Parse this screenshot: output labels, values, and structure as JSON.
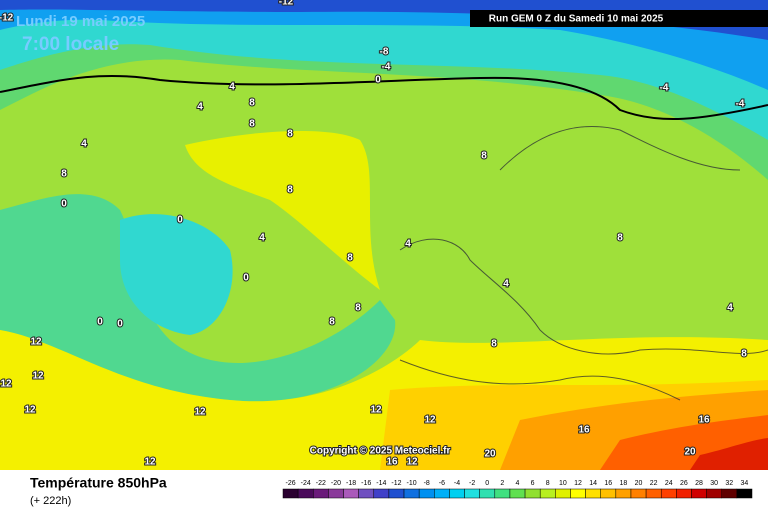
{
  "header": {
    "date": "Lundi 19 mai 2025",
    "time": "7:00 locale",
    "run": "Run GEM 0 Z du Samedi 10 mai 2025",
    "copyright": "Copyright © 2025 Meteociel.fr"
  },
  "footer": {
    "title": "Température 850hPa",
    "lead": "(+ 222h)"
  },
  "colorbar": {
    "ticks": [
      -26,
      -24,
      -22,
      -20,
      -18,
      -16,
      -14,
      -12,
      -10,
      -8,
      -6,
      -4,
      -2,
      0,
      2,
      4,
      6,
      8,
      10,
      12,
      14,
      16,
      18,
      20,
      22,
      24,
      26,
      28,
      30,
      32,
      34
    ],
    "colors": [
      "#2a0030",
      "#4a0a5a",
      "#6a1a7a",
      "#8a3a9a",
      "#aa5aba",
      "#7050c0",
      "#4040c8",
      "#2050d0",
      "#1070e0",
      "#0090f0",
      "#00b0f8",
      "#00d0f0",
      "#20e0e0",
      "#30e0b0",
      "#40e080",
      "#60e050",
      "#90e030",
      "#b8f020",
      "#e0f000",
      "#ffff00",
      "#ffe000",
      "#ffc000",
      "#ffa000",
      "#ff8000",
      "#ff6000",
      "#ff4000",
      "#f02000",
      "#d00000",
      "#a00000",
      "#600000",
      "#000000"
    ]
  },
  "contour_labels": [
    -12,
    -12,
    -8,
    -4,
    0,
    -4,
    -4,
    4,
    4,
    8,
    8,
    4,
    8,
    8,
    8,
    8,
    0,
    0,
    0,
    0,
    0,
    4,
    8,
    8,
    8,
    4,
    4,
    4,
    8,
    12,
    12,
    12,
    12,
    12,
    12,
    12,
    16,
    16,
    16,
    20,
    20,
    12,
    12,
    8,
    8
  ]
}
